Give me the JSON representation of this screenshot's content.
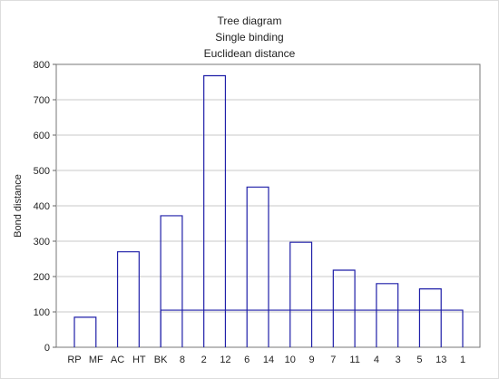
{
  "chart_data": {
    "type": "dendrogram",
    "title": [
      "Tree diagram",
      "Single binding",
      "Euclidean distance"
    ],
    "ylabel": "Bond distance",
    "xlabel": "",
    "ylim": [
      0,
      800
    ],
    "yticks": [
      0,
      100,
      200,
      300,
      400,
      500,
      600,
      700,
      800
    ],
    "grid": true,
    "leaves": [
      "RP",
      "MF",
      "AC",
      "HT",
      "BK",
      "8",
      "2",
      "12",
      "6",
      "14",
      "10",
      "9",
      "7",
      "11",
      "4",
      "3",
      "5",
      "13",
      "1"
    ],
    "merges": [
      {
        "left": "RP",
        "right": "MF",
        "height": 85
      },
      {
        "left": "AC",
        "right": "HT",
        "height": 270
      },
      {
        "left": "BK",
        "right": "8",
        "height": 372
      },
      {
        "left": "2",
        "right": "12",
        "height": 768
      },
      {
        "left": "6",
        "right": "14",
        "height": 453
      },
      {
        "left": "10",
        "right": "9",
        "height": 297
      },
      {
        "left": "7",
        "right": "11",
        "height": 218
      },
      {
        "left": "4",
        "right": "3",
        "height": 180
      },
      {
        "left": "5",
        "right": "13",
        "height": 165
      },
      {
        "left": "1",
        "right": "BK",
        "height": 105
      }
    ],
    "color": "#1f1fa8"
  }
}
